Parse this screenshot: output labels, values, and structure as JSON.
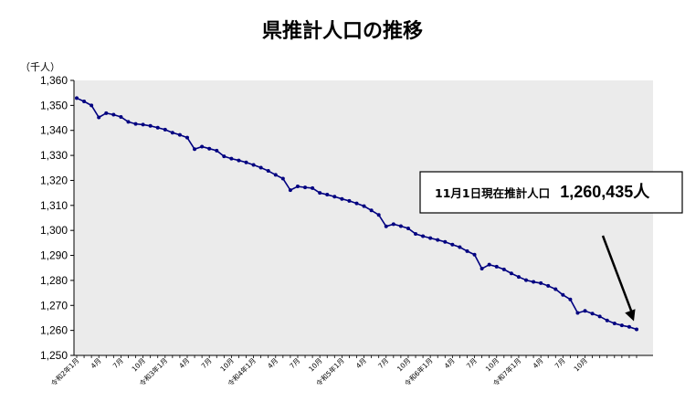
{
  "chart_data": {
    "type": "line",
    "title": "県推計人口の推移",
    "ylabel": "（千人）",
    "xlabel": "",
    "ylim": [
      1250,
      1360
    ],
    "yticks": [
      "1,250",
      "1,260",
      "1,270",
      "1,280",
      "1,290",
      "1,300",
      "1,310",
      "1,320",
      "1,330",
      "1,340",
      "1,350",
      "1,360"
    ],
    "x_tick_labels": [
      {
        "i": 0,
        "label": "令和2年1月"
      },
      {
        "i": 3,
        "label": "4月"
      },
      {
        "i": 6,
        "label": "7月"
      },
      {
        "i": 9,
        "label": "10月"
      },
      {
        "i": 12,
        "label": "令和3年1月"
      },
      {
        "i": 15,
        "label": "4月"
      },
      {
        "i": 18,
        "label": "7月"
      },
      {
        "i": 21,
        "label": "10月"
      },
      {
        "i": 24,
        "label": "令和4年1月"
      },
      {
        "i": 27,
        "label": "4月"
      },
      {
        "i": 30,
        "label": "7月"
      },
      {
        "i": 33,
        "label": "10月"
      },
      {
        "i": 36,
        "label": "令和5年1月"
      },
      {
        "i": 39,
        "label": "4月"
      },
      {
        "i": 42,
        "label": "7月"
      },
      {
        "i": 45,
        "label": "10月"
      },
      {
        "i": 48,
        "label": "令和6年1月"
      },
      {
        "i": 51,
        "label": "4月"
      },
      {
        "i": 54,
        "label": "7月"
      },
      {
        "i": 57,
        "label": "10月"
      },
      {
        "i": 60,
        "label": "令和7年1月"
      },
      {
        "i": 63,
        "label": "4月"
      },
      {
        "i": 66,
        "label": "7月"
      },
      {
        "i": 69,
        "label": "10月"
      }
    ],
    "series": [
      {
        "name": "",
        "color": "#000080",
        "values": [
          1352.9,
          1351.6,
          1350.0,
          1345.2,
          1346.9,
          1346.3,
          1345.4,
          1343.4,
          1342.6,
          1342.3,
          1341.8,
          1341.1,
          1340.3,
          1339.1,
          1338.2,
          1337.1,
          1332.5,
          1333.5,
          1332.7,
          1331.9,
          1329.6,
          1328.7,
          1328.0,
          1327.2,
          1326.2,
          1325.1,
          1323.8,
          1322.2,
          1320.7,
          1316.1,
          1317.6,
          1317.2,
          1316.9,
          1315.0,
          1314.3,
          1313.5,
          1312.6,
          1311.8,
          1310.8,
          1309.7,
          1308.0,
          1306.2,
          1301.6,
          1302.5,
          1301.7,
          1300.8,
          1298.6,
          1297.7,
          1296.9,
          1296.2,
          1295.4,
          1294.3,
          1293.3,
          1291.7,
          1290.3,
          1284.7,
          1286.3,
          1285.5,
          1284.4,
          1282.8,
          1281.4,
          1280.1,
          1279.4,
          1278.9,
          1277.8,
          1276.5,
          1274.2,
          1272.4,
          1267.0,
          1267.8,
          1266.7,
          1265.6,
          1264.0,
          1262.8,
          1262.0,
          1261.4,
          1260.4
        ]
      }
    ],
    "grid": false,
    "plot_background": "#ebebeb",
    "annotation": {
      "text_prefix": "11月1日現在推計人口",
      "text_value": "1,260,435人"
    }
  }
}
